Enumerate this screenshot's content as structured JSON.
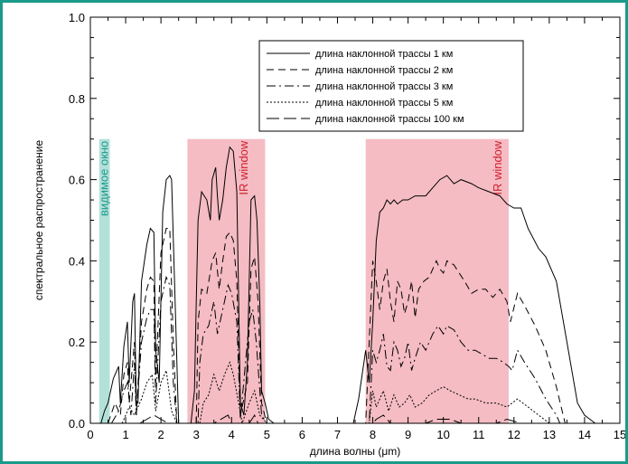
{
  "chart_data": {
    "type": "line",
    "xlabel": "длина волны (μm)",
    "ylabel": "спектральное распространение",
    "xlim": [
      0,
      15
    ],
    "ylim": [
      0,
      1.0
    ],
    "x_ticks": [
      "0",
      "1",
      "2",
      "3",
      "4",
      "5",
      "6",
      "7",
      "8",
      "9",
      "10",
      "11",
      "12",
      "13",
      "14",
      "15"
    ],
    "y_ticks": [
      "0.0",
      "0.2",
      "0.4",
      "0.6",
      "0.8",
      "1.0"
    ],
    "grid": false,
    "legend_position": "top-right",
    "bands": [
      {
        "label": "видимое окно",
        "range": [
          0.25,
          0.55
        ],
        "color": "#b4e0da",
        "text_color": "#1a9a8a"
      },
      {
        "label": "IR window",
        "range": [
          2.75,
          4.95
        ],
        "color": "#f5bcc3",
        "text_color": "#d01c2c"
      },
      {
        "label": "IR window",
        "range": [
          7.8,
          11.85
        ],
        "color": "#f5bcc3",
        "text_color": "#d01c2c"
      }
    ],
    "series": [
      {
        "name": "длина наклонной трассы 1 км",
        "dash": "solid",
        "points": [
          [
            0.3,
            0
          ],
          [
            0.4,
            0.03
          ],
          [
            0.5,
            0.05
          ],
          [
            0.65,
            0.11
          ],
          [
            0.8,
            0.14
          ],
          [
            0.85,
            0.05
          ],
          [
            0.95,
            0.19
          ],
          [
            1.05,
            0.25
          ],
          [
            1.1,
            0.1
          ],
          [
            1.2,
            0.3
          ],
          [
            1.25,
            0.32
          ],
          [
            1.3,
            0.05
          ],
          [
            1.35,
            0.05
          ],
          [
            1.45,
            0.35
          ],
          [
            1.6,
            0.44
          ],
          [
            1.7,
            0.48
          ],
          [
            1.8,
            0.47
          ],
          [
            1.85,
            0.18
          ],
          [
            1.95,
            0.1
          ],
          [
            2.05,
            0.52
          ],
          [
            2.15,
            0.6
          ],
          [
            2.25,
            0.61
          ],
          [
            2.3,
            0.6
          ],
          [
            2.4,
            0.3
          ],
          [
            2.5,
            0.0
          ],
          [
            2.85,
            0.0
          ],
          [
            2.95,
            0.08
          ],
          [
            3.0,
            0.3
          ],
          [
            3.05,
            0.5
          ],
          [
            3.15,
            0.57
          ],
          [
            3.3,
            0.55
          ],
          [
            3.4,
            0.5
          ],
          [
            3.45,
            0.6
          ],
          [
            3.55,
            0.63
          ],
          [
            3.6,
            0.56
          ],
          [
            3.65,
            0.5
          ],
          [
            3.75,
            0.55
          ],
          [
            3.85,
            0.63
          ],
          [
            3.95,
            0.68
          ],
          [
            4.05,
            0.67
          ],
          [
            4.15,
            0.57
          ],
          [
            4.25,
            0.05
          ],
          [
            4.35,
            0.02
          ],
          [
            4.45,
            0.15
          ],
          [
            4.55,
            0.55
          ],
          [
            4.65,
            0.56
          ],
          [
            4.72,
            0.5
          ],
          [
            4.8,
            0.3
          ],
          [
            4.85,
            0.08
          ],
          [
            4.95,
            0.05
          ],
          [
            5.05,
            0.01
          ],
          [
            5.2,
            0.0
          ],
          [
            7.45,
            0.0
          ],
          [
            7.6,
            0.06
          ],
          [
            7.8,
            0.18
          ],
          [
            7.9,
            0.1
          ],
          [
            8.0,
            0.25
          ],
          [
            8.1,
            0.45
          ],
          [
            8.2,
            0.52
          ],
          [
            8.3,
            0.53
          ],
          [
            8.4,
            0.55
          ],
          [
            8.5,
            0.54
          ],
          [
            8.6,
            0.55
          ],
          [
            8.7,
            0.54
          ],
          [
            8.85,
            0.55
          ],
          [
            9.0,
            0.55
          ],
          [
            9.2,
            0.56
          ],
          [
            9.5,
            0.56
          ],
          [
            9.7,
            0.58
          ],
          [
            9.9,
            0.6
          ],
          [
            10.1,
            0.61
          ],
          [
            10.3,
            0.59
          ],
          [
            10.5,
            0.6
          ],
          [
            10.8,
            0.59
          ],
          [
            11.0,
            0.58
          ],
          [
            11.3,
            0.57
          ],
          [
            11.6,
            0.56
          ],
          [
            11.8,
            0.54
          ],
          [
            12.0,
            0.53
          ],
          [
            12.2,
            0.53
          ],
          [
            12.4,
            0.48
          ],
          [
            12.7,
            0.43
          ],
          [
            12.9,
            0.41
          ],
          [
            13.2,
            0.35
          ],
          [
            13.5,
            0.2
          ],
          [
            13.8,
            0.05
          ],
          [
            14.0,
            0.02
          ],
          [
            14.3,
            0.0
          ]
        ]
      },
      {
        "name": "длина наклонной трассы 2 км",
        "dash": "8,5",
        "points": [
          [
            0.5,
            0
          ],
          [
            0.7,
            0.05
          ],
          [
            0.85,
            0.02
          ],
          [
            0.95,
            0.12
          ],
          [
            1.05,
            0.15
          ],
          [
            1.1,
            0.05
          ],
          [
            1.25,
            0.2
          ],
          [
            1.3,
            0.02
          ],
          [
            1.45,
            0.25
          ],
          [
            1.6,
            0.33
          ],
          [
            1.7,
            0.36
          ],
          [
            1.8,
            0.35
          ],
          [
            1.85,
            0.1
          ],
          [
            2.0,
            0.42
          ],
          [
            2.15,
            0.48
          ],
          [
            2.25,
            0.48
          ],
          [
            2.35,
            0.2
          ],
          [
            2.45,
            0.0
          ],
          [
            3.0,
            0.0
          ],
          [
            3.05,
            0.25
          ],
          [
            3.15,
            0.33
          ],
          [
            3.3,
            0.32
          ],
          [
            3.45,
            0.4
          ],
          [
            3.55,
            0.42
          ],
          [
            3.65,
            0.33
          ],
          [
            3.75,
            0.4
          ],
          [
            3.85,
            0.46
          ],
          [
            3.95,
            0.47
          ],
          [
            4.05,
            0.45
          ],
          [
            4.15,
            0.35
          ],
          [
            4.25,
            0.02
          ],
          [
            4.45,
            0.1
          ],
          [
            4.55,
            0.38
          ],
          [
            4.65,
            0.41
          ],
          [
            4.75,
            0.3
          ],
          [
            4.85,
            0.05
          ],
          [
            5.0,
            0.0
          ],
          [
            7.8,
            0.0
          ],
          [
            7.9,
            0.2
          ],
          [
            8.0,
            0.4
          ],
          [
            8.1,
            0.35
          ],
          [
            8.2,
            0.28
          ],
          [
            8.3,
            0.35
          ],
          [
            8.4,
            0.38
          ],
          [
            8.5,
            0.3
          ],
          [
            8.6,
            0.25
          ],
          [
            8.7,
            0.35
          ],
          [
            8.8,
            0.33
          ],
          [
            8.9,
            0.27
          ],
          [
            9.0,
            0.3
          ],
          [
            9.1,
            0.35
          ],
          [
            9.2,
            0.26
          ],
          [
            9.3,
            0.33
          ],
          [
            9.45,
            0.35
          ],
          [
            9.6,
            0.36
          ],
          [
            9.8,
            0.4
          ],
          [
            9.9,
            0.38
          ],
          [
            10.0,
            0.37
          ],
          [
            10.1,
            0.4
          ],
          [
            10.3,
            0.39
          ],
          [
            10.45,
            0.37
          ],
          [
            10.6,
            0.35
          ],
          [
            10.8,
            0.32
          ],
          [
            11.0,
            0.33
          ],
          [
            11.2,
            0.33
          ],
          [
            11.4,
            0.31
          ],
          [
            11.6,
            0.33
          ],
          [
            11.8,
            0.3
          ],
          [
            11.9,
            0.25
          ],
          [
            12.1,
            0.32
          ],
          [
            12.3,
            0.29
          ],
          [
            12.6,
            0.24
          ],
          [
            12.9,
            0.18
          ],
          [
            13.2,
            0.09
          ],
          [
            13.45,
            0.0
          ]
        ]
      },
      {
        "name": "длина наклонной трассы 3 км",
        "dash": "10,4,2,4",
        "points": [
          [
            0.6,
            0
          ],
          [
            0.8,
            0.03
          ],
          [
            0.95,
            0.08
          ],
          [
            1.05,
            0.1
          ],
          [
            1.15,
            0.02
          ],
          [
            1.25,
            0.15
          ],
          [
            1.3,
            0.02
          ],
          [
            1.45,
            0.2
          ],
          [
            1.6,
            0.26
          ],
          [
            1.7,
            0.28
          ],
          [
            1.8,
            0.28
          ],
          [
            1.85,
            0.05
          ],
          [
            2.0,
            0.3
          ],
          [
            2.15,
            0.36
          ],
          [
            2.25,
            0.34
          ],
          [
            2.35,
            0.1
          ],
          [
            2.45,
            0.0
          ],
          [
            3.05,
            0.0
          ],
          [
            3.1,
            0.15
          ],
          [
            3.2,
            0.22
          ],
          [
            3.35,
            0.24
          ],
          [
            3.5,
            0.3
          ],
          [
            3.6,
            0.22
          ],
          [
            3.75,
            0.28
          ],
          [
            3.9,
            0.34
          ],
          [
            4.0,
            0.32
          ],
          [
            4.15,
            0.25
          ],
          [
            4.25,
            0.01
          ],
          [
            4.5,
            0.25
          ],
          [
            4.6,
            0.28
          ],
          [
            4.7,
            0.2
          ],
          [
            4.85,
            0.02
          ],
          [
            5.0,
            0.0
          ],
          [
            7.9,
            0.0
          ],
          [
            8.0,
            0.18
          ],
          [
            8.1,
            0.15
          ],
          [
            8.2,
            0.18
          ],
          [
            8.3,
            0.22
          ],
          [
            8.4,
            0.14
          ],
          [
            8.5,
            0.13
          ],
          [
            8.6,
            0.2
          ],
          [
            8.7,
            0.18
          ],
          [
            8.8,
            0.14
          ],
          [
            8.9,
            0.16
          ],
          [
            9.0,
            0.2
          ],
          [
            9.1,
            0.13
          ],
          [
            9.2,
            0.16
          ],
          [
            9.35,
            0.2
          ],
          [
            9.5,
            0.18
          ],
          [
            9.7,
            0.22
          ],
          [
            9.85,
            0.24
          ],
          [
            10.0,
            0.22
          ],
          [
            10.1,
            0.24
          ],
          [
            10.3,
            0.23
          ],
          [
            10.5,
            0.2
          ],
          [
            10.7,
            0.18
          ],
          [
            10.9,
            0.18
          ],
          [
            11.1,
            0.17
          ],
          [
            11.3,
            0.16
          ],
          [
            11.5,
            0.16
          ],
          [
            11.7,
            0.15
          ],
          [
            11.85,
            0.14
          ],
          [
            11.95,
            0.13
          ],
          [
            12.1,
            0.18
          ],
          [
            12.3,
            0.15
          ],
          [
            12.6,
            0.11
          ],
          [
            12.9,
            0.06
          ],
          [
            13.2,
            0.02
          ],
          [
            13.3,
            0.0
          ]
        ]
      },
      {
        "name": "длина наклонной трассы 5 км",
        "dash": "2,2",
        "points": [
          [
            0.9,
            0
          ],
          [
            1.1,
            0.04
          ],
          [
            1.25,
            0.02
          ],
          [
            1.45,
            0.06
          ],
          [
            1.6,
            0.1
          ],
          [
            1.75,
            0.12
          ],
          [
            1.85,
            0.03
          ],
          [
            2.0,
            0.1
          ],
          [
            2.15,
            0.13
          ],
          [
            2.3,
            0.03
          ],
          [
            2.45,
            0.0
          ],
          [
            3.1,
            0.0
          ],
          [
            3.2,
            0.05
          ],
          [
            3.35,
            0.07
          ],
          [
            3.5,
            0.12
          ],
          [
            3.65,
            0.08
          ],
          [
            3.8,
            0.12
          ],
          [
            3.95,
            0.15
          ],
          [
            4.05,
            0.12
          ],
          [
            4.2,
            0.05
          ],
          [
            4.3,
            0.0
          ],
          [
            4.5,
            0.05
          ],
          [
            4.65,
            0.08
          ],
          [
            4.8,
            0.02
          ],
          [
            5.0,
            0.0
          ],
          [
            7.9,
            0.0
          ],
          [
            8.0,
            0.08
          ],
          [
            8.1,
            0.04
          ],
          [
            8.2,
            0.06
          ],
          [
            8.3,
            0.08
          ],
          [
            8.45,
            0.03
          ],
          [
            8.6,
            0.07
          ],
          [
            8.75,
            0.04
          ],
          [
            8.9,
            0.05
          ],
          [
            9.05,
            0.07
          ],
          [
            9.2,
            0.04
          ],
          [
            9.4,
            0.05
          ],
          [
            9.6,
            0.07
          ],
          [
            9.8,
            0.08
          ],
          [
            10.0,
            0.09
          ],
          [
            10.2,
            0.08
          ],
          [
            10.45,
            0.07
          ],
          [
            10.7,
            0.06
          ],
          [
            10.9,
            0.06
          ],
          [
            11.2,
            0.05
          ],
          [
            11.5,
            0.05
          ],
          [
            11.8,
            0.04
          ],
          [
            12.1,
            0.06
          ],
          [
            12.4,
            0.04
          ],
          [
            12.7,
            0.02
          ],
          [
            13.0,
            0.0
          ]
        ]
      },
      {
        "name": "длина наклонной трассы 100 км",
        "dash": "14,5",
        "points": [
          [
            1.4,
            0
          ],
          [
            1.6,
            0.01
          ],
          [
            1.8,
            0.02
          ],
          [
            2.0,
            0.01
          ],
          [
            2.2,
            0.0
          ],
          [
            3.5,
            0.0
          ],
          [
            3.9,
            0.02
          ],
          [
            4.0,
            0.0
          ],
          [
            4.5,
            0.0
          ],
          [
            4.65,
            0.02
          ],
          [
            4.75,
            0.0
          ],
          [
            8.0,
            0.0
          ],
          [
            8.1,
            0.01
          ],
          [
            8.3,
            0.02
          ],
          [
            8.5,
            0.0
          ],
          [
            9.5,
            0.0
          ],
          [
            9.8,
            0.01
          ],
          [
            10.2,
            0.01
          ],
          [
            10.5,
            0.0
          ],
          [
            11.5,
            0.0
          ],
          [
            11.8,
            0.01
          ],
          [
            12.2,
            0.0
          ]
        ]
      }
    ]
  }
}
